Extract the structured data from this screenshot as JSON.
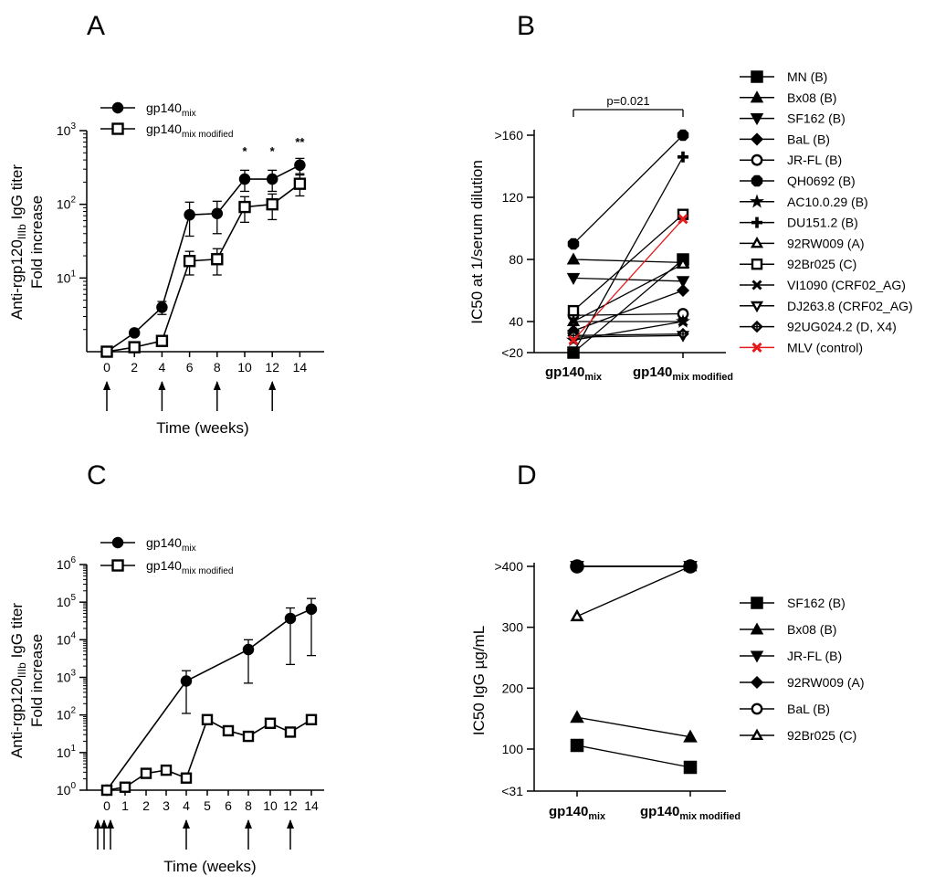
{
  "colors": {
    "ink": "#000000",
    "control": "#e41a1c"
  },
  "chart_data": [
    {
      "panel": "A",
      "type": "line",
      "yscale": "log",
      "title": "",
      "xlabel": "Time (weeks)",
      "ylabel_line1": "Anti-rgp120IIIb IgG titer",
      "ylabel_line2": "Fold increase",
      "ylim": [
        1,
        1000
      ],
      "yticks": [
        "10³",
        "10²",
        "10¹"
      ],
      "xticks": [
        0,
        2,
        4,
        6,
        8,
        10,
        12,
        14
      ],
      "immunization_weeks": [
        0,
        4,
        8,
        12
      ],
      "legend": [
        "gp140mix",
        "gp140mix modified"
      ],
      "series": [
        {
          "name": "gp140mix",
          "marker": "circle-filled",
          "x": [
            0,
            2,
            4,
            6,
            8,
            10,
            12,
            14
          ],
          "y": [
            1,
            1.8,
            4,
            72,
            75,
            220,
            220,
            340
          ],
          "err": [
            0,
            0,
            0.8,
            35,
            35,
            70,
            70,
            80
          ]
        },
        {
          "name": "gp140mix modified",
          "marker": "square-open",
          "x": [
            0,
            2,
            4,
            6,
            8,
            10,
            12,
            14
          ],
          "y": [
            1,
            1.15,
            1.4,
            17,
            18,
            92,
            100,
            190
          ],
          "err": [
            0,
            0,
            0.2,
            6,
            7,
            35,
            38,
            60
          ]
        }
      ],
      "annotations": [
        {
          "x": 10,
          "text": "*"
        },
        {
          "x": 12,
          "text": "*"
        },
        {
          "x": 14,
          "text": "**"
        }
      ]
    },
    {
      "panel": "B",
      "type": "paired",
      "ylabel": "IC50 at 1/serum dilution",
      "yticks": [
        "<20",
        "40",
        "80",
        "120",
        ">160"
      ],
      "ytick_values": [
        20,
        40,
        80,
        120,
        160
      ],
      "categories": [
        "gp140mix",
        "gp140mix modified"
      ],
      "pvalue": "p=0.021",
      "series": [
        {
          "name": "MN (B)",
          "marker": "square-filled",
          "values": [
            20,
            80
          ]
        },
        {
          "name": "Bx08 (B)",
          "marker": "triangle-filled",
          "values": [
            80,
            78
          ]
        },
        {
          "name": "SF162 (B)",
          "marker": "tri-down-filled",
          "values": [
            68,
            66
          ]
        },
        {
          "name": "BaL (B)",
          "marker": "diamond-filled",
          "values": [
            34,
            60
          ]
        },
        {
          "name": "JR-FL (B)",
          "marker": "circle-open",
          "values": [
            44,
            45
          ]
        },
        {
          "name": "QH0692 (B)",
          "marker": "octagon-filled",
          "values": [
            90,
            160
          ]
        },
        {
          "name": "AC10.0.29 (B)",
          "marker": "star",
          "values": [
            28,
            40
          ]
        },
        {
          "name": "DU151.2 (B)",
          "marker": "plus",
          "values": [
            20,
            146
          ]
        },
        {
          "name": "92RW009 (A)",
          "marker": "triangle-open",
          "values": [
            40,
            77
          ]
        },
        {
          "name": "92Br025 (C)",
          "marker": "square-open",
          "values": [
            47,
            109
          ]
        },
        {
          "name": "VI1090 (CRF02_AG)",
          "marker": "x",
          "values": [
            40,
            40
          ]
        },
        {
          "name": "DJ263.8 (CRF02_AG)",
          "marker": "tri-down-open",
          "values": [
            30,
            31
          ]
        },
        {
          "name": "92UG024.2 (D, X4)",
          "marker": "diamond-open",
          "values": [
            31,
            32
          ]
        },
        {
          "name": "MLV (control)",
          "marker": "x-red",
          "values": [
            28,
            106
          ]
        }
      ]
    },
    {
      "panel": "C",
      "type": "line",
      "yscale": "log",
      "xlabel": "Time (weeks)",
      "ylabel_line1": "Anti-rgp120IIIb IgG titer",
      "ylabel_line2": "Fold increase",
      "ylim": [
        1,
        1000000
      ],
      "yticks": [
        "10⁶",
        "10⁵",
        "10⁴",
        "10³",
        "10²",
        "10¹",
        "10⁰"
      ],
      "xticks": [
        0,
        1,
        2,
        3,
        4,
        5,
        6,
        8,
        10,
        12,
        14
      ],
      "immunization_weeks": [
        0,
        0,
        0,
        4,
        8,
        12
      ],
      "legend": [
        "gp140mix",
        "gp140mix modified"
      ],
      "series": [
        {
          "name": "gp140mix",
          "marker": "circle-filled",
          "x": [
            0,
            4,
            8,
            12,
            14
          ],
          "y": [
            1,
            800,
            5500,
            37000,
            65000
          ],
          "err_hi": [
            1,
            1500,
            10000,
            70000,
            125000
          ],
          "err_lo": [
            1,
            110,
            700,
            2200,
            3800
          ]
        },
        {
          "name": "gp140mix modified",
          "marker": "square-open",
          "x": [
            0,
            1,
            2,
            3,
            4,
            5,
            6,
            8,
            10,
            12,
            14
          ],
          "y": [
            1,
            1.2,
            2.8,
            3.4,
            2.1,
            75,
            38,
            27,
            60,
            35,
            75
          ]
        }
      ]
    },
    {
      "panel": "D",
      "type": "paired",
      "ylabel": "IC50 IgG µg/mL",
      "yticks": [
        "<31",
        "100",
        "200",
        "300",
        ">400"
      ],
      "ytick_values": [
        31,
        100,
        200,
        300,
        400
      ],
      "categories": [
        "gp140mix",
        "gp140mix modified"
      ],
      "series": [
        {
          "name": "SF162 (B)",
          "marker": "square-filled",
          "values": [
            106,
            70
          ]
        },
        {
          "name": "Bx08 (B)",
          "marker": "triangle-filled",
          "values": [
            152,
            120
          ]
        },
        {
          "name": "JR-FL (B)",
          "marker": "tri-down-filled",
          "values": [
            400,
            400
          ]
        },
        {
          "name": "92RW009 (A)",
          "marker": "diamond-filled",
          "values": [
            400,
            400
          ]
        },
        {
          "name": "BaL (B)",
          "marker": "circle-open",
          "values": [
            400,
            400
          ]
        },
        {
          "name": "92Br025 (C)",
          "marker": "triangle-open",
          "values": [
            318,
            400
          ]
        }
      ]
    }
  ]
}
